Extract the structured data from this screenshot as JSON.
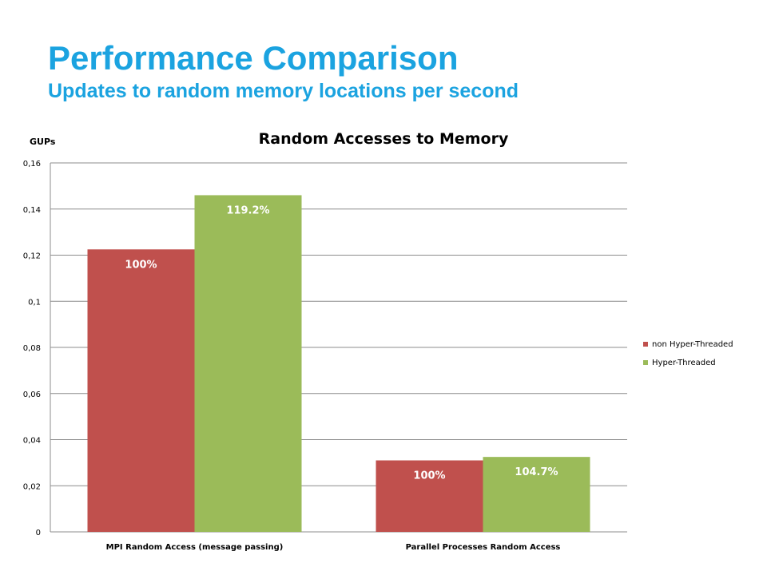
{
  "slide": {
    "title": "Performance Comparison",
    "subtitle": "Updates to random memory locations per second"
  },
  "chart_data": {
    "type": "bar",
    "title": "Random Accesses to Memory",
    "ylabel": "GUPs",
    "xlabel": "",
    "categories": [
      "MPI Random Access (message passing)",
      "Parallel Processes Random Access"
    ],
    "series": [
      {
        "name": "non Hyper-Threaded",
        "color": "#c0504d",
        "values": [
          0.1225,
          0.031
        ],
        "labels": [
          "100%",
          "100%"
        ]
      },
      {
        "name": "Hyper-Threaded",
        "color": "#9bbb59",
        "values": [
          0.146,
          0.0325
        ],
        "labels": [
          "119.2%",
          "104.7%"
        ]
      }
    ],
    "ylim": [
      0,
      0.16
    ],
    "yticks": [
      0,
      0.02,
      0.04,
      0.06,
      0.08,
      0.1,
      0.12,
      0.14,
      0.16
    ],
    "ytick_labels": [
      "0",
      "0,02",
      "0,04",
      "0,06",
      "0,08",
      "0,1",
      "0,12",
      "0,14",
      "0,16"
    ],
    "grid": true,
    "legend_position": "right"
  }
}
